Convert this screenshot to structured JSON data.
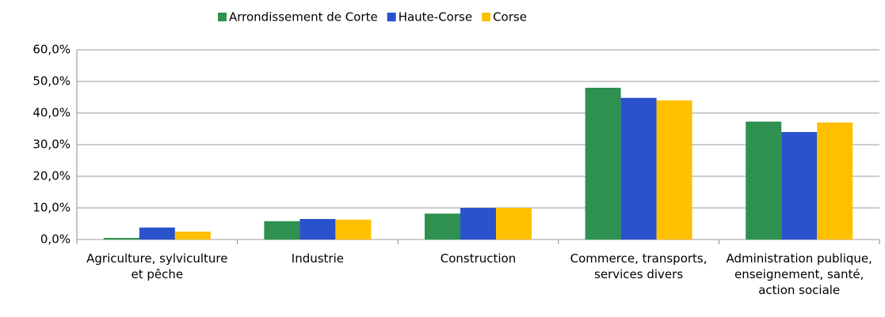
{
  "chart_data": {
    "type": "bar",
    "categories": [
      "Agriculture, sylviculture et pêche",
      "Industrie",
      "Construction",
      "Commerce, transports, services divers",
      "Administration publique, enseignement, santé, action sociale"
    ],
    "series": [
      {
        "name": "Arrondissement de Corte",
        "color": "#2e9150",
        "values": [
          0.5,
          5.8,
          8.2,
          48.0,
          37.3
        ]
      },
      {
        "name": "Haute-Corse",
        "color": "#2a52cc",
        "values": [
          3.8,
          6.5,
          10.0,
          44.8,
          34.0
        ]
      },
      {
        "name": "Corse",
        "color": "#ffc000",
        "values": [
          2.5,
          6.3,
          10.0,
          44.0,
          37.0
        ]
      }
    ],
    "ylim": [
      0,
      60
    ],
    "yticks": [
      {
        "value": 0,
        "label": "0,0%"
      },
      {
        "value": 10,
        "label": "10,0%"
      },
      {
        "value": 20,
        "label": "20,0%"
      },
      {
        "value": 30,
        "label": "30,0%"
      },
      {
        "value": 40,
        "label": "40,0%"
      },
      {
        "value": 50,
        "label": "50,0%"
      },
      {
        "value": 60,
        "label": "60,0%"
      }
    ],
    "grid": true,
    "legend": "top"
  }
}
